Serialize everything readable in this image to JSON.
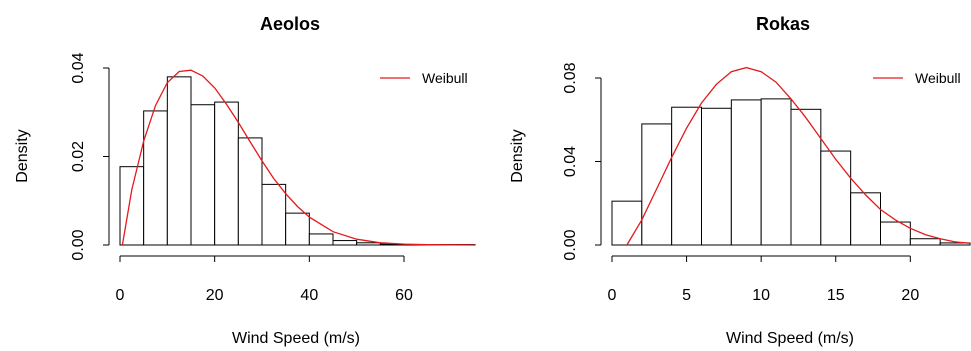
{
  "chart_data": [
    {
      "type": "histogram",
      "title": "Aeolos",
      "xlabel": "Wind Speed (m/s)",
      "ylabel": "Density",
      "xlim": [
        0,
        75
      ],
      "ylim": [
        0,
        0.04
      ],
      "x_ticks": [
        0,
        20,
        40,
        60
      ],
      "y_ticks": [
        "0.00",
        "0.02",
        "0.04"
      ],
      "bins": [
        {
          "x0": 0,
          "x1": 5,
          "density": 0.0177
        },
        {
          "x0": 5,
          "x1": 10,
          "density": 0.0303
        },
        {
          "x0": 10,
          "x1": 15,
          "density": 0.038
        },
        {
          "x0": 15,
          "x1": 20,
          "density": 0.0317
        },
        {
          "x0": 20,
          "x1": 25,
          "density": 0.0323
        },
        {
          "x0": 25,
          "x1": 30,
          "density": 0.0242
        },
        {
          "x0": 30,
          "x1": 35,
          "density": 0.0137
        },
        {
          "x0": 35,
          "x1": 40,
          "density": 0.0072
        },
        {
          "x0": 40,
          "x1": 45,
          "density": 0.0025
        },
        {
          "x0": 45,
          "x1": 50,
          "density": 0.001
        },
        {
          "x0": 50,
          "x1": 55,
          "density": 0.0005
        },
        {
          "x0": 55,
          "x1": 60,
          "density": 0.0002
        },
        {
          "x0": 60,
          "x1": 65,
          "density": 0.0001
        },
        {
          "x0": 65,
          "x1": 70,
          "density": 0.0001
        },
        {
          "x0": 70,
          "x1": 75,
          "density": 0.0001
        }
      ],
      "series": [
        {
          "name": "Weibull",
          "color": "#e41a1c",
          "x": [
            0.5,
            2.5,
            5,
            7.5,
            10,
            12.5,
            15,
            17.5,
            20,
            22.5,
            25,
            27.5,
            30,
            32.5,
            35,
            37.5,
            40,
            45,
            50,
            55,
            60,
            65,
            70,
            75
          ],
          "y": [
            0.0,
            0.0125,
            0.0235,
            0.0315,
            0.0367,
            0.0392,
            0.0395,
            0.0382,
            0.0355,
            0.0318,
            0.0277,
            0.0233,
            0.019,
            0.015,
            0.0116,
            0.0087,
            0.0063,
            0.003,
            0.0013,
            0.0005,
            0.0002,
            6e-05,
            2e-05,
            0.0
          ]
        }
      ],
      "legend": {
        "position": "top-right",
        "entries": [
          "Weibull"
        ]
      },
      "grid": false
    },
    {
      "type": "histogram",
      "title": "Rokas",
      "xlabel": "Wind Speed (m/s)",
      "ylabel": "Density",
      "xlim": [
        0,
        24
      ],
      "ylim": [
        0,
        0.08
      ],
      "x_ticks": [
        0,
        5,
        10,
        15,
        20
      ],
      "y_ticks": [
        "0.00",
        "0.04",
        "0.08"
      ],
      "bins": [
        {
          "x0": 0,
          "x1": 2,
          "density": 0.021
        },
        {
          "x0": 2,
          "x1": 4,
          "density": 0.058
        },
        {
          "x0": 4,
          "x1": 6,
          "density": 0.066
        },
        {
          "x0": 6,
          "x1": 8,
          "density": 0.0655
        },
        {
          "x0": 8,
          "x1": 10,
          "density": 0.0695
        },
        {
          "x0": 10,
          "x1": 12,
          "density": 0.07
        },
        {
          "x0": 12,
          "x1": 14,
          "density": 0.065
        },
        {
          "x0": 14,
          "x1": 16,
          "density": 0.045
        },
        {
          "x0": 16,
          "x1": 18,
          "density": 0.025
        },
        {
          "x0": 18,
          "x1": 20,
          "density": 0.011
        },
        {
          "x0": 20,
          "x1": 22,
          "density": 0.003
        },
        {
          "x0": 22,
          "x1": 24,
          "density": 0.001
        }
      ],
      "series": [
        {
          "name": "Weibull",
          "color": "#e41a1c",
          "x": [
            1,
            2,
            3,
            4,
            5,
            6,
            7,
            8,
            9,
            10,
            11,
            12,
            13,
            14,
            15,
            16,
            17,
            18,
            19,
            20,
            21,
            22,
            23,
            24
          ],
          "y": [
            0.0,
            0.012,
            0.027,
            0.042,
            0.056,
            0.068,
            0.077,
            0.083,
            0.085,
            0.083,
            0.078,
            0.07,
            0.061,
            0.051,
            0.041,
            0.032,
            0.024,
            0.017,
            0.012,
            0.008,
            0.005,
            0.003,
            0.0015,
            0.0008
          ]
        }
      ],
      "legend": {
        "position": "top-right",
        "entries": [
          "Weibull"
        ]
      },
      "grid": false
    }
  ]
}
